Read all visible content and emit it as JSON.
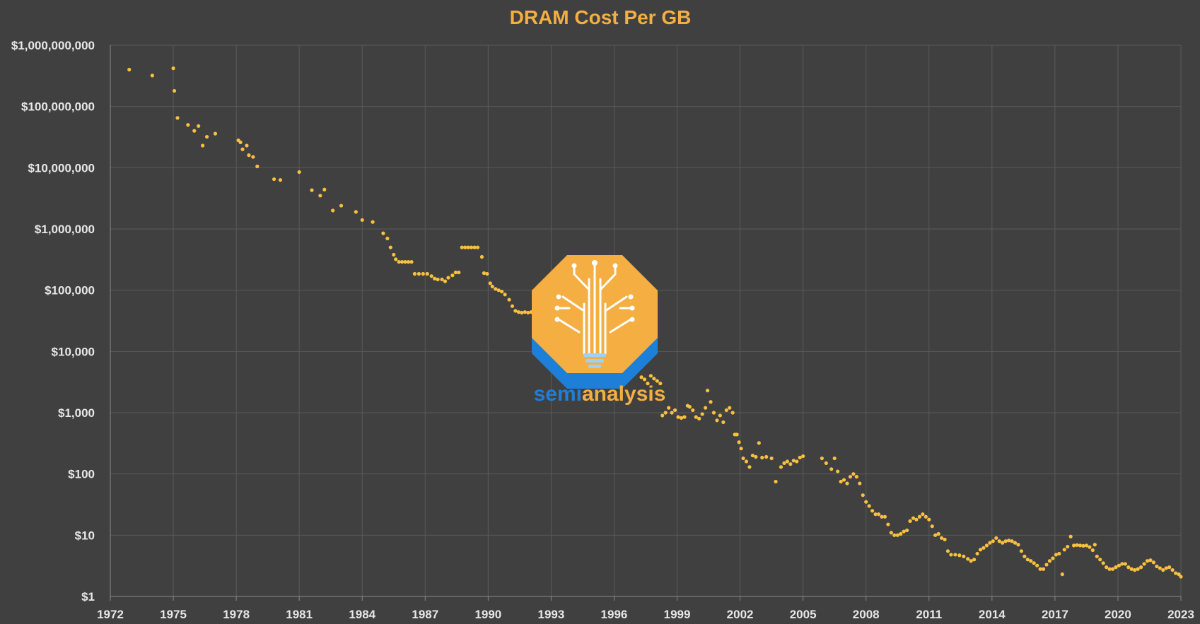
{
  "colors": {
    "background": "#404040",
    "title": "#F4AE42",
    "point": "#F8C040",
    "grid": "#5a5a5a",
    "tick_text": "#e6e6e6",
    "logo_orange": "#F4AE42",
    "logo_blue": "#1E7FD8"
  },
  "logo": {
    "icon": "lightbulb-tree-icon",
    "text_part1": "semi",
    "text_part2": "analysis"
  },
  "chart_data": {
    "type": "scatter",
    "title": "DRAM Cost Per GB",
    "xlabel": "",
    "ylabel": "",
    "y_scale": "log",
    "xlim": [
      1972,
      2023
    ],
    "ylim": [
      1,
      1000000000
    ],
    "grid": true,
    "legend": "none",
    "x_ticks": [
      "1972",
      "1975",
      "1978",
      "1981",
      "1984",
      "1987",
      "1990",
      "1993",
      "1996",
      "1999",
      "2002",
      "2005",
      "2008",
      "2011",
      "2014",
      "2017",
      "2020",
      "2023"
    ],
    "y_ticks": [
      {
        "value": 1,
        "label": "$1"
      },
      {
        "value": 10,
        "label": "$10"
      },
      {
        "value": 100,
        "label": "$100"
      },
      {
        "value": 1000,
        "label": "$1,000"
      },
      {
        "value": 10000,
        "label": "$10,000"
      },
      {
        "value": 100000,
        "label": "$100,000"
      },
      {
        "value": 1000000,
        "label": "$1,000,000"
      },
      {
        "value": 10000000,
        "label": "$10,000,000"
      },
      {
        "value": 100000000,
        "label": "$100,000,000"
      },
      {
        "value": 1000000000,
        "label": "$1,000,000,000"
      }
    ],
    "series": [
      {
        "points": [
          [
            1972.9,
            400000000
          ],
          [
            1974.0,
            320000000
          ],
          [
            1975.0,
            420000000
          ],
          [
            1975.05,
            180000000
          ],
          [
            1975.2,
            65000000
          ],
          [
            1975.7,
            50000000
          ],
          [
            1976.0,
            40000000
          ],
          [
            1976.2,
            48000000
          ],
          [
            1976.4,
            23000000
          ],
          [
            1976.6,
            32000000
          ],
          [
            1977.0,
            36000000
          ],
          [
            1978.1,
            28000000
          ],
          [
            1978.2,
            26000000
          ],
          [
            1978.3,
            20000000
          ],
          [
            1978.5,
            23000000
          ],
          [
            1978.6,
            16000000
          ],
          [
            1978.8,
            15000000
          ],
          [
            1979.0,
            10500000
          ],
          [
            1979.8,
            6500000
          ],
          [
            1980.1,
            6300000
          ],
          [
            1981.0,
            8500000
          ],
          [
            1981.6,
            4300000
          ],
          [
            1982.0,
            3500000
          ],
          [
            1982.2,
            4400000
          ],
          [
            1982.6,
            2000000
          ],
          [
            1983.0,
            2400000
          ],
          [
            1983.7,
            1900000
          ],
          [
            1984.0,
            1400000
          ],
          [
            1984.5,
            1300000
          ],
          [
            1985.0,
            850000
          ],
          [
            1985.2,
            700000
          ],
          [
            1985.35,
            500000
          ],
          [
            1985.5,
            380000
          ],
          [
            1985.6,
            320000
          ],
          [
            1985.75,
            290000
          ],
          [
            1985.9,
            290000
          ],
          [
            1986.05,
            290000
          ],
          [
            1986.2,
            290000
          ],
          [
            1986.35,
            290000
          ],
          [
            1986.5,
            185000
          ],
          [
            1986.7,
            185000
          ],
          [
            1986.9,
            185000
          ],
          [
            1987.1,
            185000
          ],
          [
            1987.3,
            170000
          ],
          [
            1987.45,
            155000
          ],
          [
            1987.6,
            150000
          ],
          [
            1987.8,
            150000
          ],
          [
            1987.95,
            140000
          ],
          [
            1988.1,
            160000
          ],
          [
            1988.3,
            175000
          ],
          [
            1988.45,
            195000
          ],
          [
            1988.6,
            195000
          ],
          [
            1988.75,
            500000
          ],
          [
            1988.9,
            500000
          ],
          [
            1989.05,
            500000
          ],
          [
            1989.2,
            500000
          ],
          [
            1989.35,
            500000
          ],
          [
            1989.5,
            500000
          ],
          [
            1989.7,
            350000
          ],
          [
            1989.8,
            190000
          ],
          [
            1989.95,
            185000
          ],
          [
            1990.1,
            130000
          ],
          [
            1990.2,
            115000
          ],
          [
            1990.35,
            105000
          ],
          [
            1990.5,
            100000
          ],
          [
            1990.65,
            95000
          ],
          [
            1990.8,
            85000
          ],
          [
            1991.0,
            70000
          ],
          [
            1991.15,
            55000
          ],
          [
            1991.3,
            46000
          ],
          [
            1991.45,
            44000
          ],
          [
            1991.6,
            43000
          ],
          [
            1991.75,
            44000
          ],
          [
            1991.9,
            43000
          ],
          [
            1992.05,
            44000
          ],
          [
            1992.2,
            43000
          ],
          [
            1992.35,
            40000
          ],
          [
            1992.5,
            37000
          ],
          [
            1992.7,
            34000
          ],
          [
            1992.9,
            31000
          ],
          [
            1997.1,
            5000
          ],
          [
            1997.3,
            3800
          ],
          [
            1997.45,
            3500
          ],
          [
            1997.6,
            3000
          ],
          [
            1997.75,
            4000
          ],
          [
            1997.9,
            3600
          ],
          [
            1998.05,
            3300
          ],
          [
            1998.2,
            3000
          ],
          [
            1998.3,
            900
          ],
          [
            1998.45,
            1000
          ],
          [
            1998.6,
            1200
          ],
          [
            1998.75,
            1000
          ],
          [
            1998.9,
            1100
          ],
          [
            1999.05,
            850
          ],
          [
            1999.2,
            820
          ],
          [
            1999.35,
            850
          ],
          [
            1999.5,
            1300
          ],
          [
            1999.6,
            1250
          ],
          [
            1999.75,
            1100
          ],
          [
            1999.9,
            850
          ],
          [
            2000.05,
            800
          ],
          [
            2000.2,
            950
          ],
          [
            2000.35,
            1200
          ],
          [
            2000.45,
            2300
          ],
          [
            2000.6,
            1500
          ],
          [
            2000.75,
            1000
          ],
          [
            2000.9,
            750
          ],
          [
            2001.05,
            900
          ],
          [
            2001.2,
            700
          ],
          [
            2001.35,
            1100
          ],
          [
            2001.5,
            1200
          ],
          [
            2001.65,
            1000
          ],
          [
            2001.75,
            440
          ],
          [
            2001.85,
            440
          ],
          [
            2001.95,
            330
          ],
          [
            2002.05,
            260
          ],
          [
            2002.15,
            180
          ],
          [
            2002.3,
            160
          ],
          [
            2002.45,
            130
          ],
          [
            2002.6,
            200
          ],
          [
            2002.75,
            190
          ],
          [
            2002.9,
            320
          ],
          [
            2003.05,
            185
          ],
          [
            2003.25,
            190
          ],
          [
            2003.5,
            180
          ],
          [
            2003.7,
            75
          ],
          [
            2003.95,
            130
          ],
          [
            2004.1,
            150
          ],
          [
            2004.25,
            160
          ],
          [
            2004.4,
            145
          ],
          [
            2004.55,
            165
          ],
          [
            2004.7,
            160
          ],
          [
            2004.85,
            185
          ],
          [
            2005.0,
            195
          ],
          [
            2005.9,
            180
          ],
          [
            2006.1,
            150
          ],
          [
            2006.35,
            120
          ],
          [
            2006.5,
            180
          ],
          [
            2006.65,
            110
          ],
          [
            2006.8,
            75
          ],
          [
            2006.95,
            80
          ],
          [
            2007.1,
            70
          ],
          [
            2007.25,
            90
          ],
          [
            2007.4,
            100
          ],
          [
            2007.55,
            90
          ],
          [
            2007.7,
            70
          ],
          [
            2007.85,
            45
          ],
          [
            2008.0,
            35
          ],
          [
            2008.15,
            30
          ],
          [
            2008.3,
            25
          ],
          [
            2008.45,
            22
          ],
          [
            2008.6,
            22
          ],
          [
            2008.75,
            20
          ],
          [
            2008.9,
            20
          ],
          [
            2009.05,
            15
          ],
          [
            2009.2,
            11
          ],
          [
            2009.35,
            10
          ],
          [
            2009.5,
            10
          ],
          [
            2009.65,
            10.5
          ],
          [
            2009.8,
            11.5
          ],
          [
            2009.95,
            12
          ],
          [
            2010.1,
            17
          ],
          [
            2010.25,
            19
          ],
          [
            2010.4,
            18
          ],
          [
            2010.55,
            20
          ],
          [
            2010.7,
            22
          ],
          [
            2010.85,
            20
          ],
          [
            2011.0,
            18
          ],
          [
            2011.15,
            14
          ],
          [
            2011.3,
            10
          ],
          [
            2011.45,
            10.5
          ],
          [
            2011.6,
            9
          ],
          [
            2011.75,
            8.5
          ],
          [
            2011.9,
            5.5
          ],
          [
            2012.05,
            4.8
          ],
          [
            2012.25,
            4.8
          ],
          [
            2012.45,
            4.7
          ],
          [
            2012.65,
            4.5
          ],
          [
            2012.85,
            4.1
          ],
          [
            2013.0,
            3.8
          ],
          [
            2013.15,
            4.0
          ],
          [
            2013.3,
            5.0
          ],
          [
            2013.45,
            5.8
          ],
          [
            2013.6,
            6.2
          ],
          [
            2013.75,
            6.8
          ],
          [
            2013.9,
            7.5
          ],
          [
            2014.05,
            8.0
          ],
          [
            2014.2,
            9.0
          ],
          [
            2014.35,
            8.0
          ],
          [
            2014.5,
            7.5
          ],
          [
            2014.65,
            8.0
          ],
          [
            2014.8,
            8.2
          ],
          [
            2014.95,
            8.0
          ],
          [
            2015.1,
            7.5
          ],
          [
            2015.25,
            7.0
          ],
          [
            2015.4,
            5.5
          ],
          [
            2015.55,
            4.5
          ],
          [
            2015.7,
            4.0
          ],
          [
            2015.85,
            3.8
          ],
          [
            2016.0,
            3.5
          ],
          [
            2016.15,
            3.2
          ],
          [
            2016.3,
            2.8
          ],
          [
            2016.45,
            2.8
          ],
          [
            2016.6,
            3.3
          ],
          [
            2016.75,
            3.8
          ],
          [
            2016.9,
            4.2
          ],
          [
            2017.05,
            4.8
          ],
          [
            2017.2,
            5.0
          ],
          [
            2017.35,
            2.3
          ],
          [
            2017.45,
            5.8
          ],
          [
            2017.6,
            6.5
          ],
          [
            2017.75,
            9.5
          ],
          [
            2017.9,
            6.8
          ],
          [
            2018.05,
            6.9
          ],
          [
            2018.2,
            6.8
          ],
          [
            2018.35,
            6.7
          ],
          [
            2018.5,
            6.8
          ],
          [
            2018.65,
            6.4
          ],
          [
            2018.8,
            5.7
          ],
          [
            2018.9,
            7.0
          ],
          [
            2019.0,
            4.5
          ],
          [
            2019.15,
            4.0
          ],
          [
            2019.3,
            3.5
          ],
          [
            2019.45,
            3.0
          ],
          [
            2019.6,
            2.8
          ],
          [
            2019.75,
            2.8
          ],
          [
            2019.9,
            3.0
          ],
          [
            2020.05,
            3.2
          ],
          [
            2020.2,
            3.4
          ],
          [
            2020.35,
            3.4
          ],
          [
            2020.5,
            3.0
          ],
          [
            2020.65,
            2.8
          ],
          [
            2020.8,
            2.7
          ],
          [
            2020.95,
            2.8
          ],
          [
            2021.1,
            3.0
          ],
          [
            2021.25,
            3.4
          ],
          [
            2021.4,
            3.8
          ],
          [
            2021.55,
            3.9
          ],
          [
            2021.7,
            3.6
          ],
          [
            2021.85,
            3.1
          ],
          [
            2022.0,
            2.9
          ],
          [
            2022.15,
            2.7
          ],
          [
            2022.3,
            2.9
          ],
          [
            2022.45,
            3.0
          ],
          [
            2022.6,
            2.7
          ],
          [
            2022.75,
            2.4
          ],
          [
            2022.9,
            2.3
          ],
          [
            2023.0,
            2.1
          ]
        ]
      }
    ]
  }
}
